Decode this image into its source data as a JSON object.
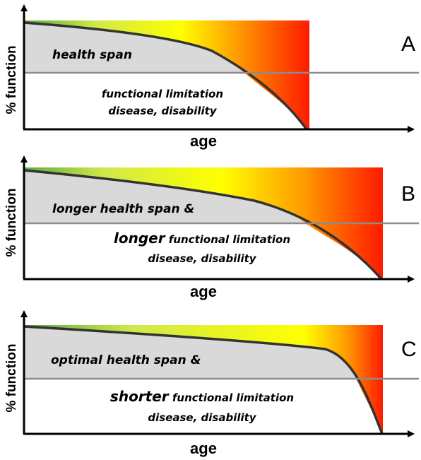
{
  "axes": {
    "y_label": "% function",
    "x_label": "age"
  },
  "panels": [
    {
      "letter": "A",
      "health_text": "health span",
      "limit_prefix": "",
      "limit_rest": "functional limitation",
      "disease_text": "disease, disability"
    },
    {
      "letter": "B",
      "health_text": "longer health span &",
      "limit_prefix": "longer",
      "limit_rest": " functional limitation",
      "disease_text": "disease, disability"
    },
    {
      "letter": "C",
      "health_text": "optimal health span &",
      "limit_prefix": "shorter",
      "limit_rest": " functional limitation",
      "disease_text": "disease, disability"
    }
  ],
  "colors": {
    "gradient": [
      "#5aaa3c",
      "#cfe84a",
      "#ffff00",
      "#ff9a00",
      "#ff1a00"
    ],
    "shade": "#d9d9d9",
    "threshold_line": "#8c8c8c",
    "curve": "#333333"
  }
}
